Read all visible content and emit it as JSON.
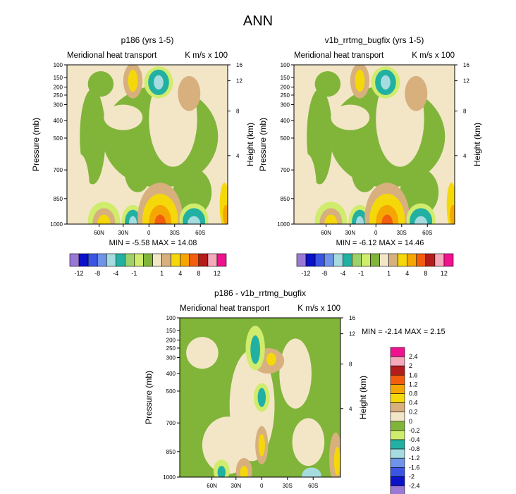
{
  "figure_title": "ANN",
  "chart_data": [
    {
      "type": "heatmap",
      "title": "p186 (yrs 1-5)",
      "subtitle_left": "Meridional heat transport",
      "subtitle_right": "K m/s x 100",
      "ylabel": "Pressure (mb)",
      "y2label": "Height (km)",
      "xticks": [
        "60N",
        "30N",
        "0",
        "30S",
        "60S"
      ],
      "yticks": [
        "100",
        "150",
        "200",
        "250",
        "300",
        "400",
        "500",
        "700",
        "850",
        "1000"
      ],
      "y2ticks": [
        "16",
        "12",
        "8",
        "4"
      ],
      "stats": "MIN = -5.58  MAX = 14.08",
      "min": -5.58,
      "max": 14.08
    },
    {
      "type": "heatmap",
      "title": "v1b_rrtmg_bugfix (yrs 1-5)",
      "subtitle_left": "Meridional heat transport",
      "subtitle_right": "K m/s x 100",
      "ylabel": "Pressure (mb)",
      "y2label": "Height (km)",
      "xticks": [
        "60N",
        "30N",
        "0",
        "30S",
        "60S"
      ],
      "yticks": [
        "100",
        "150",
        "200",
        "250",
        "300",
        "400",
        "500",
        "700",
        "850",
        "1000"
      ],
      "y2ticks": [
        "16",
        "12",
        "8",
        "4"
      ],
      "stats": "MIN = -6.12  MAX = 14.46",
      "min": -6.12,
      "max": 14.46
    },
    {
      "type": "heatmap",
      "title": "p186 - v1b_rrtmg_bugfix",
      "subtitle_left": "Meridional heat transport",
      "subtitle_right": "K m/s x 100",
      "ylabel": "Pressure (mb)",
      "y2label": "Height (km)",
      "xticks": [
        "60N",
        "30N",
        "0",
        "30S",
        "60S"
      ],
      "yticks": [
        "100",
        "150",
        "200",
        "250",
        "300",
        "400",
        "500",
        "700",
        "850",
        "1000"
      ],
      "y2ticks": [
        "16",
        "12",
        "8",
        "4"
      ],
      "stats": "MIN = -2.14  MAX = 2.15",
      "min": -2.14,
      "max": 2.15
    }
  ],
  "colorbar_main": {
    "labels": [
      "-12",
      "-8",
      "-4",
      "-1",
      "1",
      "4",
      "8",
      "12"
    ],
    "colors": [
      "#9a79d6",
      "#0a11c9",
      "#3a55e2",
      "#6f93e8",
      "#a6dcdf",
      "#22b0a3",
      "#9fd16b",
      "#d0ec6c",
      "#80b53a",
      "#f3e6c7",
      "#d7b07e",
      "#f5d80a",
      "#f5a602",
      "#f25d0e",
      "#b51c1c",
      "#f6a9bb",
      "#f0118f"
    ]
  },
  "colorbar_diff": {
    "labels": [
      "2.4",
      "2",
      "1.6",
      "1.2",
      "0.8",
      "0.4",
      "0.2",
      "0",
      "-0.2",
      "-0.4",
      "-0.8",
      "-1.2",
      "-1.6",
      "-2",
      "-2.4"
    ],
    "colors": [
      "#f0118f",
      "#f6a9bb",
      "#b51c1c",
      "#f25d0e",
      "#f5a602",
      "#f5d80a",
      "#d7b07e",
      "#f3e6c7",
      "#80b53a",
      "#d0ec6c",
      "#22b0a3",
      "#a6dcdf",
      "#6f93e8",
      "#3a55e2",
      "#0a11c9",
      "#9a79d6"
    ]
  },
  "palette": {
    "beige": "#f3e6c7",
    "green": "#80b53a",
    "lightgreen": "#d0ec6c",
    "teal": "#22b0a3",
    "lightcyan": "#a6dcdf",
    "tan": "#d7b07e",
    "yellow": "#f5d80a",
    "orange": "#f5a602",
    "redorange": "#f25d0e",
    "darkred": "#b51c1c",
    "pink": "#f6a9bb",
    "magenta": "#f0118f"
  }
}
